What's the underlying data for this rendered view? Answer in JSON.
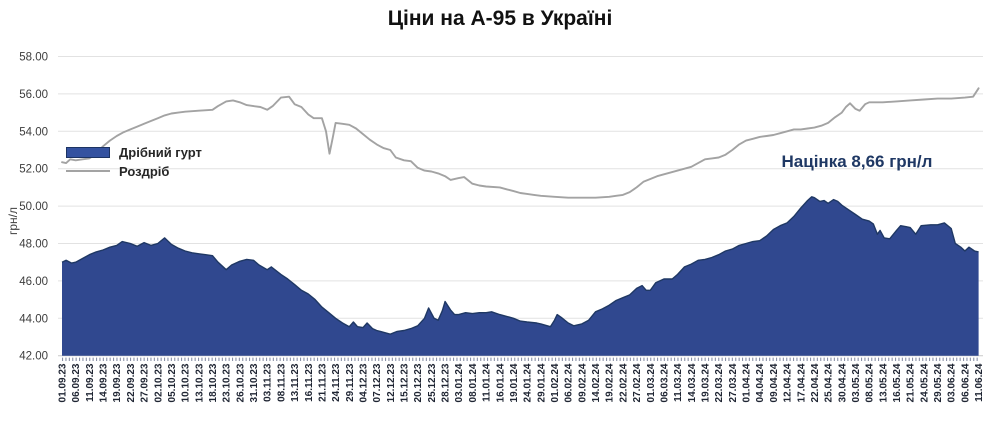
{
  "title": "Ціни на А-95 в Україні",
  "y_axis": {
    "label": "грн/л",
    "tick_labels": [
      "58.00",
      "56.00",
      "54.00",
      "52.00",
      "50.00",
      "48.00",
      "46.00",
      "44.00",
      "42.00"
    ],
    "min": 42,
    "max": 58,
    "step": 2
  },
  "annotation": {
    "text": "Націнка 8,66 грн/л",
    "color": "#1F3864"
  },
  "legend": {
    "items": [
      {
        "label": "Дрібний гурт",
        "type": "area",
        "fill": "#3452A0",
        "border": "#1C3362"
      },
      {
        "label": "Роздріб",
        "type": "line",
        "color": "#A3A3A3"
      }
    ]
  },
  "colors": {
    "area_fill": "#30488F",
    "area_outline": "#1F3864",
    "line": "#A3A3A3",
    "grid": "#e2e2e2",
    "axis": "#cfcfcf",
    "ticks": "#8a92a8"
  },
  "chart_data": {
    "type": "area+line",
    "title": "Ціни на А-95 в Україні",
    "ylabel": "грн/л",
    "ylim": [
      42,
      58
    ],
    "grid": true,
    "legend_position": "inside-left-middle",
    "annotation": "Націнка 8,66 грн/л",
    "categories": [
      "01.09.23",
      "06.09.23",
      "11.09.23",
      "14.09.23",
      "19.09.23",
      "22.09.23",
      "27.09.23",
      "02.10.23",
      "05.10.23",
      "10.10.23",
      "13.10.23",
      "18.10.23",
      "23.10.23",
      "26.10.23",
      "31.10.23",
      "03.11.23",
      "08.11.23",
      "13.11.23",
      "16.11.23",
      "21.11.23",
      "24.11.23",
      "29.11.23",
      "04.12.23",
      "07.12.23",
      "12.12.23",
      "15.12.23",
      "20.12.23",
      "25.12.23",
      "28.12.23",
      "03.01.24",
      "08.01.24",
      "11.01.24",
      "16.01.24",
      "19.01.24",
      "24.01.24",
      "29.01.24",
      "01.02.24",
      "06.02.24",
      "09.02.24",
      "14.02.24",
      "19.02.24",
      "22.02.24",
      "27.02.24",
      "01.03.24",
      "06.03.24",
      "11.03.24",
      "14.03.24",
      "19.03.24",
      "22.03.24",
      "27.03.24",
      "01.04.24",
      "04.04.24",
      "09.04.24",
      "12.04.24",
      "17.04.24",
      "22.04.24",
      "25.04.24",
      "30.04.24",
      "03.05.24",
      "08.05.24",
      "13.05.24",
      "16.05.24",
      "21.05.24",
      "24.05.24",
      "29.05.24",
      "03.06.24",
      "06.06.24",
      "11.06.24"
    ],
    "x_unit": "label-index (fractional x = between labeled dates)",
    "series": [
      {
        "name": "Дрібний гурт",
        "type": "area",
        "color": "#30488F",
        "outline": "#1F3864",
        "points": [
          [
            0,
            47.0
          ],
          [
            0.3,
            47.1
          ],
          [
            0.7,
            46.95
          ],
          [
            1,
            47.0
          ],
          [
            1.5,
            47.2
          ],
          [
            2,
            47.4
          ],
          [
            2.5,
            47.55
          ],
          [
            3,
            47.65
          ],
          [
            3.5,
            47.8
          ],
          [
            4,
            47.9
          ],
          [
            4.4,
            48.1
          ],
          [
            5,
            48.0
          ],
          [
            5.5,
            47.85
          ],
          [
            6,
            48.05
          ],
          [
            6.5,
            47.9
          ],
          [
            7,
            48.0
          ],
          [
            7.5,
            48.3
          ],
          [
            8,
            47.95
          ],
          [
            8.5,
            47.75
          ],
          [
            9,
            47.6
          ],
          [
            9.5,
            47.5
          ],
          [
            10,
            47.45
          ],
          [
            10.5,
            47.4
          ],
          [
            11,
            47.35
          ],
          [
            11.4,
            47.0
          ],
          [
            12,
            46.6
          ],
          [
            12.4,
            46.85
          ],
          [
            13,
            47.05
          ],
          [
            13.5,
            47.15
          ],
          [
            14,
            47.1
          ],
          [
            14.4,
            46.85
          ],
          [
            15,
            46.6
          ],
          [
            15.3,
            46.75
          ],
          [
            16,
            46.35
          ],
          [
            16.5,
            46.1
          ],
          [
            17,
            45.8
          ],
          [
            17.5,
            45.5
          ],
          [
            18,
            45.3
          ],
          [
            18.5,
            45.0
          ],
          [
            19,
            44.6
          ],
          [
            19.5,
            44.3
          ],
          [
            20,
            44.0
          ],
          [
            20.5,
            43.75
          ],
          [
            21,
            43.55
          ],
          [
            21.3,
            43.8
          ],
          [
            21.6,
            43.55
          ],
          [
            22,
            43.5
          ],
          [
            22.3,
            43.75
          ],
          [
            22.7,
            43.45
          ],
          [
            23,
            43.35
          ],
          [
            23.5,
            43.25
          ],
          [
            24,
            43.15
          ],
          [
            24.5,
            43.3
          ],
          [
            25,
            43.35
          ],
          [
            25.5,
            43.45
          ],
          [
            26,
            43.6
          ],
          [
            26.5,
            44.0
          ],
          [
            26.8,
            44.55
          ],
          [
            27.2,
            44.0
          ],
          [
            27.5,
            43.9
          ],
          [
            27.8,
            44.4
          ],
          [
            28,
            44.9
          ],
          [
            28.4,
            44.45
          ],
          [
            28.7,
            44.2
          ],
          [
            29,
            44.2
          ],
          [
            29.5,
            44.3
          ],
          [
            30,
            44.25
          ],
          [
            30.5,
            44.3
          ],
          [
            31,
            44.3
          ],
          [
            31.4,
            44.35
          ],
          [
            32,
            44.2
          ],
          [
            32.5,
            44.1
          ],
          [
            33,
            44.0
          ],
          [
            33.5,
            43.85
          ],
          [
            34,
            43.8
          ],
          [
            34.7,
            43.75
          ],
          [
            35,
            43.7
          ],
          [
            35.7,
            43.55
          ],
          [
            36,
            43.9
          ],
          [
            36.2,
            44.2
          ],
          [
            36.5,
            44.05
          ],
          [
            37,
            43.75
          ],
          [
            37.4,
            43.6
          ],
          [
            38,
            43.7
          ],
          [
            38.5,
            43.9
          ],
          [
            39,
            44.35
          ],
          [
            39.5,
            44.5
          ],
          [
            40,
            44.7
          ],
          [
            40.5,
            44.95
          ],
          [
            41,
            45.1
          ],
          [
            41.5,
            45.25
          ],
          [
            42,
            45.6
          ],
          [
            42.4,
            45.75
          ],
          [
            42.7,
            45.5
          ],
          [
            43,
            45.5
          ],
          [
            43.4,
            45.9
          ],
          [
            44,
            46.1
          ],
          [
            44.6,
            46.1
          ],
          [
            45,
            46.35
          ],
          [
            45.5,
            46.75
          ],
          [
            46,
            46.9
          ],
          [
            46.5,
            47.1
          ],
          [
            47,
            47.15
          ],
          [
            47.5,
            47.25
          ],
          [
            48,
            47.4
          ],
          [
            48.5,
            47.6
          ],
          [
            49,
            47.7
          ],
          [
            49.5,
            47.9
          ],
          [
            50,
            48.0
          ],
          [
            50.5,
            48.1
          ],
          [
            51,
            48.15
          ],
          [
            51.5,
            48.4
          ],
          [
            52,
            48.75
          ],
          [
            52.5,
            48.95
          ],
          [
            53,
            49.1
          ],
          [
            53.5,
            49.45
          ],
          [
            54,
            49.9
          ],
          [
            54.5,
            50.3
          ],
          [
            54.8,
            50.5
          ],
          [
            55,
            50.45
          ],
          [
            55.4,
            50.25
          ],
          [
            55.7,
            50.3
          ],
          [
            56,
            50.15
          ],
          [
            56.4,
            50.35
          ],
          [
            56.7,
            50.25
          ],
          [
            57,
            50.05
          ],
          [
            57.5,
            49.8
          ],
          [
            58,
            49.55
          ],
          [
            58.5,
            49.3
          ],
          [
            59,
            49.2
          ],
          [
            59.3,
            49.05
          ],
          [
            59.6,
            48.5
          ],
          [
            59.8,
            48.7
          ],
          [
            60.1,
            48.3
          ],
          [
            60.5,
            48.25
          ],
          [
            61,
            48.7
          ],
          [
            61.3,
            48.95
          ],
          [
            61.7,
            48.9
          ],
          [
            62,
            48.85
          ],
          [
            62.4,
            48.5
          ],
          [
            62.8,
            48.95
          ],
          [
            63.5,
            49.0
          ],
          [
            64,
            49.0
          ],
          [
            64.5,
            49.1
          ],
          [
            65,
            48.8
          ],
          [
            65.3,
            48.0
          ],
          [
            65.7,
            47.8
          ],
          [
            66,
            47.6
          ],
          [
            66.3,
            47.8
          ],
          [
            66.7,
            47.6
          ],
          [
            67,
            47.55
          ]
        ]
      },
      {
        "name": "Роздріб",
        "type": "line",
        "color": "#A3A3A3",
        "points": [
          [
            0,
            52.35
          ],
          [
            0.3,
            52.3
          ],
          [
            0.6,
            52.5
          ],
          [
            1,
            52.45
          ],
          [
            1.5,
            52.5
          ],
          [
            2,
            52.55
          ],
          [
            2.4,
            52.75
          ],
          [
            3,
            53.2
          ],
          [
            3.5,
            53.5
          ],
          [
            4,
            53.75
          ],
          [
            4.5,
            53.95
          ],
          [
            5,
            54.1
          ],
          [
            5.5,
            54.25
          ],
          [
            6,
            54.4
          ],
          [
            6.5,
            54.55
          ],
          [
            7,
            54.7
          ],
          [
            7.5,
            54.85
          ],
          [
            8,
            54.95
          ],
          [
            8.5,
            55.0
          ],
          [
            9,
            55.05
          ],
          [
            10,
            55.1
          ],
          [
            11,
            55.15
          ],
          [
            11.4,
            55.35
          ],
          [
            12,
            55.6
          ],
          [
            12.5,
            55.65
          ],
          [
            13,
            55.55
          ],
          [
            13.5,
            55.4
          ],
          [
            14,
            55.35
          ],
          [
            14.5,
            55.3
          ],
          [
            15,
            55.15
          ],
          [
            15.4,
            55.35
          ],
          [
            16,
            55.8
          ],
          [
            16.6,
            55.85
          ],
          [
            17,
            55.45
          ],
          [
            17.5,
            55.3
          ],
          [
            18,
            54.9
          ],
          [
            18.4,
            54.7
          ],
          [
            19,
            54.7
          ],
          [
            19.3,
            54.0
          ],
          [
            19.55,
            52.8
          ],
          [
            19.8,
            53.7
          ],
          [
            20,
            54.45
          ],
          [
            20.5,
            54.4
          ],
          [
            21,
            54.35
          ],
          [
            21.5,
            54.15
          ],
          [
            22,
            53.85
          ],
          [
            22.5,
            53.55
          ],
          [
            23,
            53.3
          ],
          [
            23.5,
            53.1
          ],
          [
            24,
            53.0
          ],
          [
            24.4,
            52.6
          ],
          [
            25,
            52.45
          ],
          [
            25.5,
            52.4
          ],
          [
            26,
            52.05
          ],
          [
            26.5,
            51.9
          ],
          [
            27,
            51.85
          ],
          [
            27.5,
            51.75
          ],
          [
            28,
            51.6
          ],
          [
            28.4,
            51.4
          ],
          [
            29,
            51.5
          ],
          [
            29.4,
            51.55
          ],
          [
            30,
            51.2
          ],
          [
            30.5,
            51.1
          ],
          [
            31,
            51.05
          ],
          [
            32,
            51.0
          ],
          [
            32.5,
            50.9
          ],
          [
            33,
            50.8
          ],
          [
            33.5,
            50.7
          ],
          [
            34,
            50.65
          ],
          [
            34.5,
            50.6
          ],
          [
            35,
            50.55
          ],
          [
            36,
            50.5
          ],
          [
            37,
            50.45
          ],
          [
            38,
            50.45
          ],
          [
            39,
            50.45
          ],
          [
            40,
            50.5
          ],
          [
            40.5,
            50.55
          ],
          [
            41,
            50.6
          ],
          [
            41.5,
            50.75
          ],
          [
            42,
            51.0
          ],
          [
            42.5,
            51.3
          ],
          [
            43,
            51.45
          ],
          [
            43.5,
            51.6
          ],
          [
            44,
            51.7
          ],
          [
            44.5,
            51.8
          ],
          [
            45,
            51.9
          ],
          [
            45.5,
            52.0
          ],
          [
            46,
            52.1
          ],
          [
            46.5,
            52.3
          ],
          [
            47,
            52.5
          ],
          [
            47.5,
            52.55
          ],
          [
            48,
            52.6
          ],
          [
            48.5,
            52.75
          ],
          [
            49,
            53.0
          ],
          [
            49.5,
            53.3
          ],
          [
            50,
            53.5
          ],
          [
            50.5,
            53.6
          ],
          [
            51,
            53.7
          ],
          [
            51.5,
            53.75
          ],
          [
            52,
            53.8
          ],
          [
            52.5,
            53.9
          ],
          [
            53,
            54.0
          ],
          [
            53.5,
            54.1
          ],
          [
            54,
            54.1
          ],
          [
            54.5,
            54.15
          ],
          [
            55,
            54.2
          ],
          [
            55.5,
            54.3
          ],
          [
            56,
            54.45
          ],
          [
            56.5,
            54.75
          ],
          [
            57,
            55.0
          ],
          [
            57.3,
            55.3
          ],
          [
            57.6,
            55.5
          ],
          [
            58,
            55.2
          ],
          [
            58.3,
            55.1
          ],
          [
            58.7,
            55.45
          ],
          [
            59,
            55.55
          ],
          [
            60,
            55.55
          ],
          [
            61,
            55.6
          ],
          [
            62,
            55.65
          ],
          [
            63,
            55.7
          ],
          [
            64,
            55.75
          ],
          [
            65,
            55.75
          ],
          [
            66,
            55.8
          ],
          [
            66.6,
            55.85
          ],
          [
            67,
            56.3
          ]
        ]
      }
    ]
  }
}
